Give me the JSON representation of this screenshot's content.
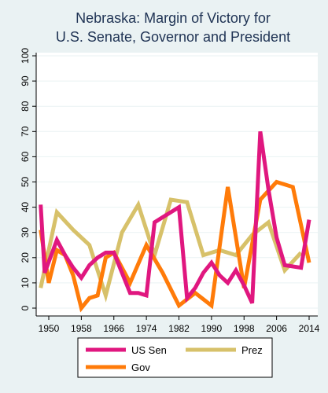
{
  "chart_data": {
    "type": "line",
    "title_lines": [
      "Nebraska: Margin of Victory for",
      "U.S. Senate, Governor and President"
    ],
    "xlabel": "",
    "ylabel": "",
    "xlim": [
      1946,
      2016
    ],
    "ylim": [
      0,
      100
    ],
    "x_ticks": [
      1950,
      1958,
      1966,
      1974,
      1982,
      1990,
      1998,
      2006,
      2014
    ],
    "y_ticks": [
      0,
      10,
      20,
      30,
      40,
      50,
      60,
      70,
      80,
      90,
      100
    ],
    "grid": true,
    "legend_position": "bottom",
    "series": [
      {
        "name": "US Sen",
        "color": "#e0177f",
        "points": [
          [
            1948,
            41
          ],
          [
            1949,
            14
          ],
          [
            1952,
            27
          ],
          [
            1954,
            21
          ],
          [
            1956,
            16
          ],
          [
            1958,
            12
          ],
          [
            1960,
            17
          ],
          [
            1962,
            20
          ],
          [
            1964,
            22
          ],
          [
            1966,
            22
          ],
          [
            1970,
            6
          ],
          [
            1972,
            6
          ],
          [
            1974,
            5
          ],
          [
            1976,
            34
          ],
          [
            1978,
            36
          ],
          [
            1982,
            40
          ],
          [
            1984,
            4
          ],
          [
            1986,
            8
          ],
          [
            1988,
            14
          ],
          [
            1990,
            18
          ],
          [
            1992,
            13
          ],
          [
            1994,
            10
          ],
          [
            1996,
            15
          ],
          [
            1998,
            9
          ],
          [
            2000,
            2
          ],
          [
            2002,
            70
          ],
          [
            2004,
            47
          ],
          [
            2006,
            28
          ],
          [
            2008,
            17
          ],
          [
            2012,
            16
          ],
          [
            2014,
            35
          ]
        ]
      },
      {
        "name": "Prez",
        "color": "#d7c16a",
        "points": [
          [
            1948,
            8
          ],
          [
            1952,
            38
          ],
          [
            1956,
            31
          ],
          [
            1960,
            25
          ],
          [
            1964,
            5
          ],
          [
            1968,
            30
          ],
          [
            1972,
            41
          ],
          [
            1976,
            21
          ],
          [
            1980,
            43
          ],
          [
            1984,
            42
          ],
          [
            1988,
            21
          ],
          [
            1992,
            23
          ],
          [
            1996,
            21
          ],
          [
            2000,
            29
          ],
          [
            2004,
            34
          ],
          [
            2008,
            15
          ],
          [
            2012,
            22
          ]
        ]
      },
      {
        "name": "Gov",
        "color": "#ff7b09",
        "points": [
          [
            1948,
            31
          ],
          [
            1950,
            10
          ],
          [
            1952,
            23
          ],
          [
            1954,
            21
          ],
          [
            1956,
            13
          ],
          [
            1958,
            0
          ],
          [
            1960,
            4
          ],
          [
            1962,
            5
          ],
          [
            1964,
            20
          ],
          [
            1966,
            22
          ],
          [
            1970,
            10
          ],
          [
            1974,
            25
          ],
          [
            1978,
            14
          ],
          [
            1982,
            1
          ],
          [
            1986,
            6
          ],
          [
            1990,
            1
          ],
          [
            1994,
            48
          ],
          [
            1998,
            8
          ],
          [
            2002,
            43
          ],
          [
            2006,
            50
          ],
          [
            2010,
            48
          ],
          [
            2014,
            18
          ]
        ]
      }
    ]
  }
}
